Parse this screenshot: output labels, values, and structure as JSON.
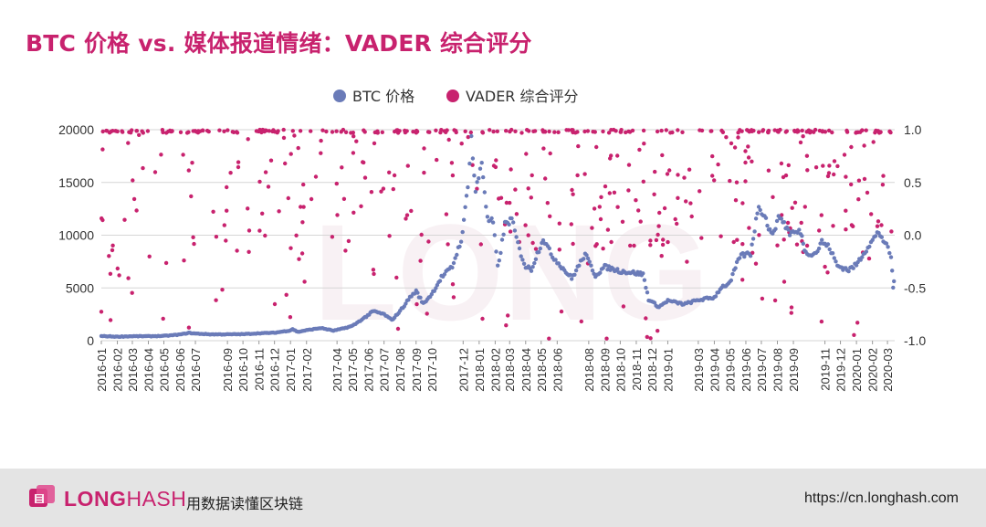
{
  "page": {
    "title": "BTC 价格 vs. 媒体报道情绪：VADER 综合评分"
  },
  "footer": {
    "brand_long": "LONG",
    "brand_hash": "HASH",
    "slogan": "用数据读懂区块链",
    "url": "https://cn.longhash.com",
    "logo_icon": "longhash-cube-icon"
  },
  "colors": {
    "title": "#c8226e",
    "btc": "#6a7bb8",
    "vader": "#c8226e",
    "watermark": "#f4e6ec"
  },
  "chart_data": {
    "type": "scatter",
    "title": "BTC 价格 vs. 媒体报道情绪：VADER 综合评分",
    "legend": {
      "placement": "top-center",
      "entries": [
        "BTC 价格",
        "VADER 综合评分"
      ]
    },
    "x_range": [
      "2016-01-01",
      "2020-03-15"
    ],
    "x_ticks": [
      "2016-01",
      "2016-02",
      "2016-03",
      "2016-04",
      "2016-05",
      "2016-06",
      "2016-07",
      "2016-09",
      "2016-10",
      "2016-11",
      "2016-12",
      "2017-01",
      "2017-02",
      "2017-04",
      "2017-05",
      "2017-06",
      "2017-07",
      "2017-08",
      "2017-09",
      "2017-10",
      "2017-12",
      "2018-01",
      "2018-02",
      "2018-03",
      "2018-04",
      "2018-05",
      "2018-06",
      "2018-08",
      "2018-09",
      "2018-10",
      "2018-11",
      "2018-12",
      "2019-01",
      "2019-03",
      "2019-04",
      "2019-05",
      "2019-06",
      "2019-07",
      "2019-08",
      "2019-09",
      "2019-11",
      "2019-12",
      "2020-01",
      "2020-02",
      "2020-03"
    ],
    "y_left": {
      "label": "",
      "range": [
        0,
        20000
      ],
      "ticks": [
        "0",
        "5000",
        "10000",
        "15000",
        "20000"
      ]
    },
    "y_right": {
      "label": "",
      "range": [
        -1.0,
        1.0
      ],
      "ticks": [
        "-1.0",
        "-0.5",
        "0.0",
        "0.5",
        "1.0"
      ]
    },
    "grid": "horizontal",
    "series": [
      {
        "name": "BTC 价格",
        "axis": "left",
        "points": [
          [
            "2016-01-01",
            430
          ],
          [
            "2016-02-01",
            380
          ],
          [
            "2016-03-01",
            420
          ],
          [
            "2016-04-01",
            420
          ],
          [
            "2016-05-01",
            450
          ],
          [
            "2016-06-01",
            580
          ],
          [
            "2016-06-18",
            740
          ],
          [
            "2016-07-01",
            670
          ],
          [
            "2016-08-01",
            600
          ],
          [
            "2016-09-01",
            600
          ],
          [
            "2016-10-01",
            615
          ],
          [
            "2016-11-01",
            700
          ],
          [
            "2016-12-01",
            750
          ],
          [
            "2016-12-31",
            960
          ],
          [
            "2017-01-05",
            1100
          ],
          [
            "2017-01-15",
            830
          ],
          [
            "2017-02-01",
            990
          ],
          [
            "2017-03-01",
            1200
          ],
          [
            "2017-03-25",
            950
          ],
          [
            "2017-04-15",
            1180
          ],
          [
            "2017-05-01",
            1400
          ],
          [
            "2017-05-25",
            2200
          ],
          [
            "2017-06-10",
            2800
          ],
          [
            "2017-07-01",
            2500
          ],
          [
            "2017-07-16",
            1950
          ],
          [
            "2017-08-01",
            2800
          ],
          [
            "2017-08-20",
            4100
          ],
          [
            "2017-09-01",
            4700
          ],
          [
            "2017-09-15",
            3500
          ],
          [
            "2017-10-01",
            4400
          ],
          [
            "2017-10-20",
            6000
          ],
          [
            "2017-11-10",
            7000
          ],
          [
            "2017-11-30",
            10000
          ],
          [
            "2017-12-10",
            15000
          ],
          [
            "2017-12-17",
            19200
          ],
          [
            "2017-12-25",
            14000
          ],
          [
            "2018-01-06",
            17000
          ],
          [
            "2018-01-17",
            11500
          ],
          [
            "2018-01-28",
            11200
          ],
          [
            "2018-02-06",
            6900
          ],
          [
            "2018-02-20",
            11000
          ],
          [
            "2018-03-05",
            11500
          ],
          [
            "2018-03-20",
            8600
          ],
          [
            "2018-04-01",
            7000
          ],
          [
            "2018-04-12",
            6800
          ],
          [
            "2018-05-05",
            9700
          ],
          [
            "2018-05-20",
            8200
          ],
          [
            "2018-06-01",
            7500
          ],
          [
            "2018-06-29",
            5900
          ],
          [
            "2018-07-25",
            8200
          ],
          [
            "2018-08-14",
            6200
          ],
          [
            "2018-09-01",
            7000
          ],
          [
            "2018-10-01",
            6600
          ],
          [
            "2018-11-01",
            6400
          ],
          [
            "2018-11-14",
            6300
          ],
          [
            "2018-11-25",
            3900
          ],
          [
            "2018-12-15",
            3200
          ],
          [
            "2019-01-01",
            3800
          ],
          [
            "2019-02-01",
            3450
          ],
          [
            "2019-03-01",
            3850
          ],
          [
            "2019-04-01",
            4100
          ],
          [
            "2019-04-15",
            5100
          ],
          [
            "2019-05-01",
            5400
          ],
          [
            "2019-05-20",
            8000
          ],
          [
            "2019-06-10",
            8300
          ],
          [
            "2019-06-26",
            12900
          ],
          [
            "2019-07-10",
            11500
          ],
          [
            "2019-07-20",
            10000
          ],
          [
            "2019-08-06",
            11800
          ],
          [
            "2019-08-25",
            10200
          ],
          [
            "2019-09-15",
            10300
          ],
          [
            "2019-09-25",
            8300
          ],
          [
            "2019-10-15",
            8300
          ],
          [
            "2019-10-26",
            9400
          ],
          [
            "2019-11-10",
            8800
          ],
          [
            "2019-11-25",
            7100
          ],
          [
            "2019-12-17",
            6700
          ],
          [
            "2020-01-01",
            7200
          ],
          [
            "2020-01-20",
            8700
          ],
          [
            "2020-02-13",
            10300
          ],
          [
            "2020-02-25",
            9300
          ],
          [
            "2020-03-08",
            8000
          ],
          [
            "2020-03-12",
            5000
          ],
          [
            "2020-03-15",
            6400
          ]
        ]
      },
      {
        "name": "VADER 综合评分",
        "axis": "right",
        "values_note": "",
        "points": []
      }
    ]
  }
}
